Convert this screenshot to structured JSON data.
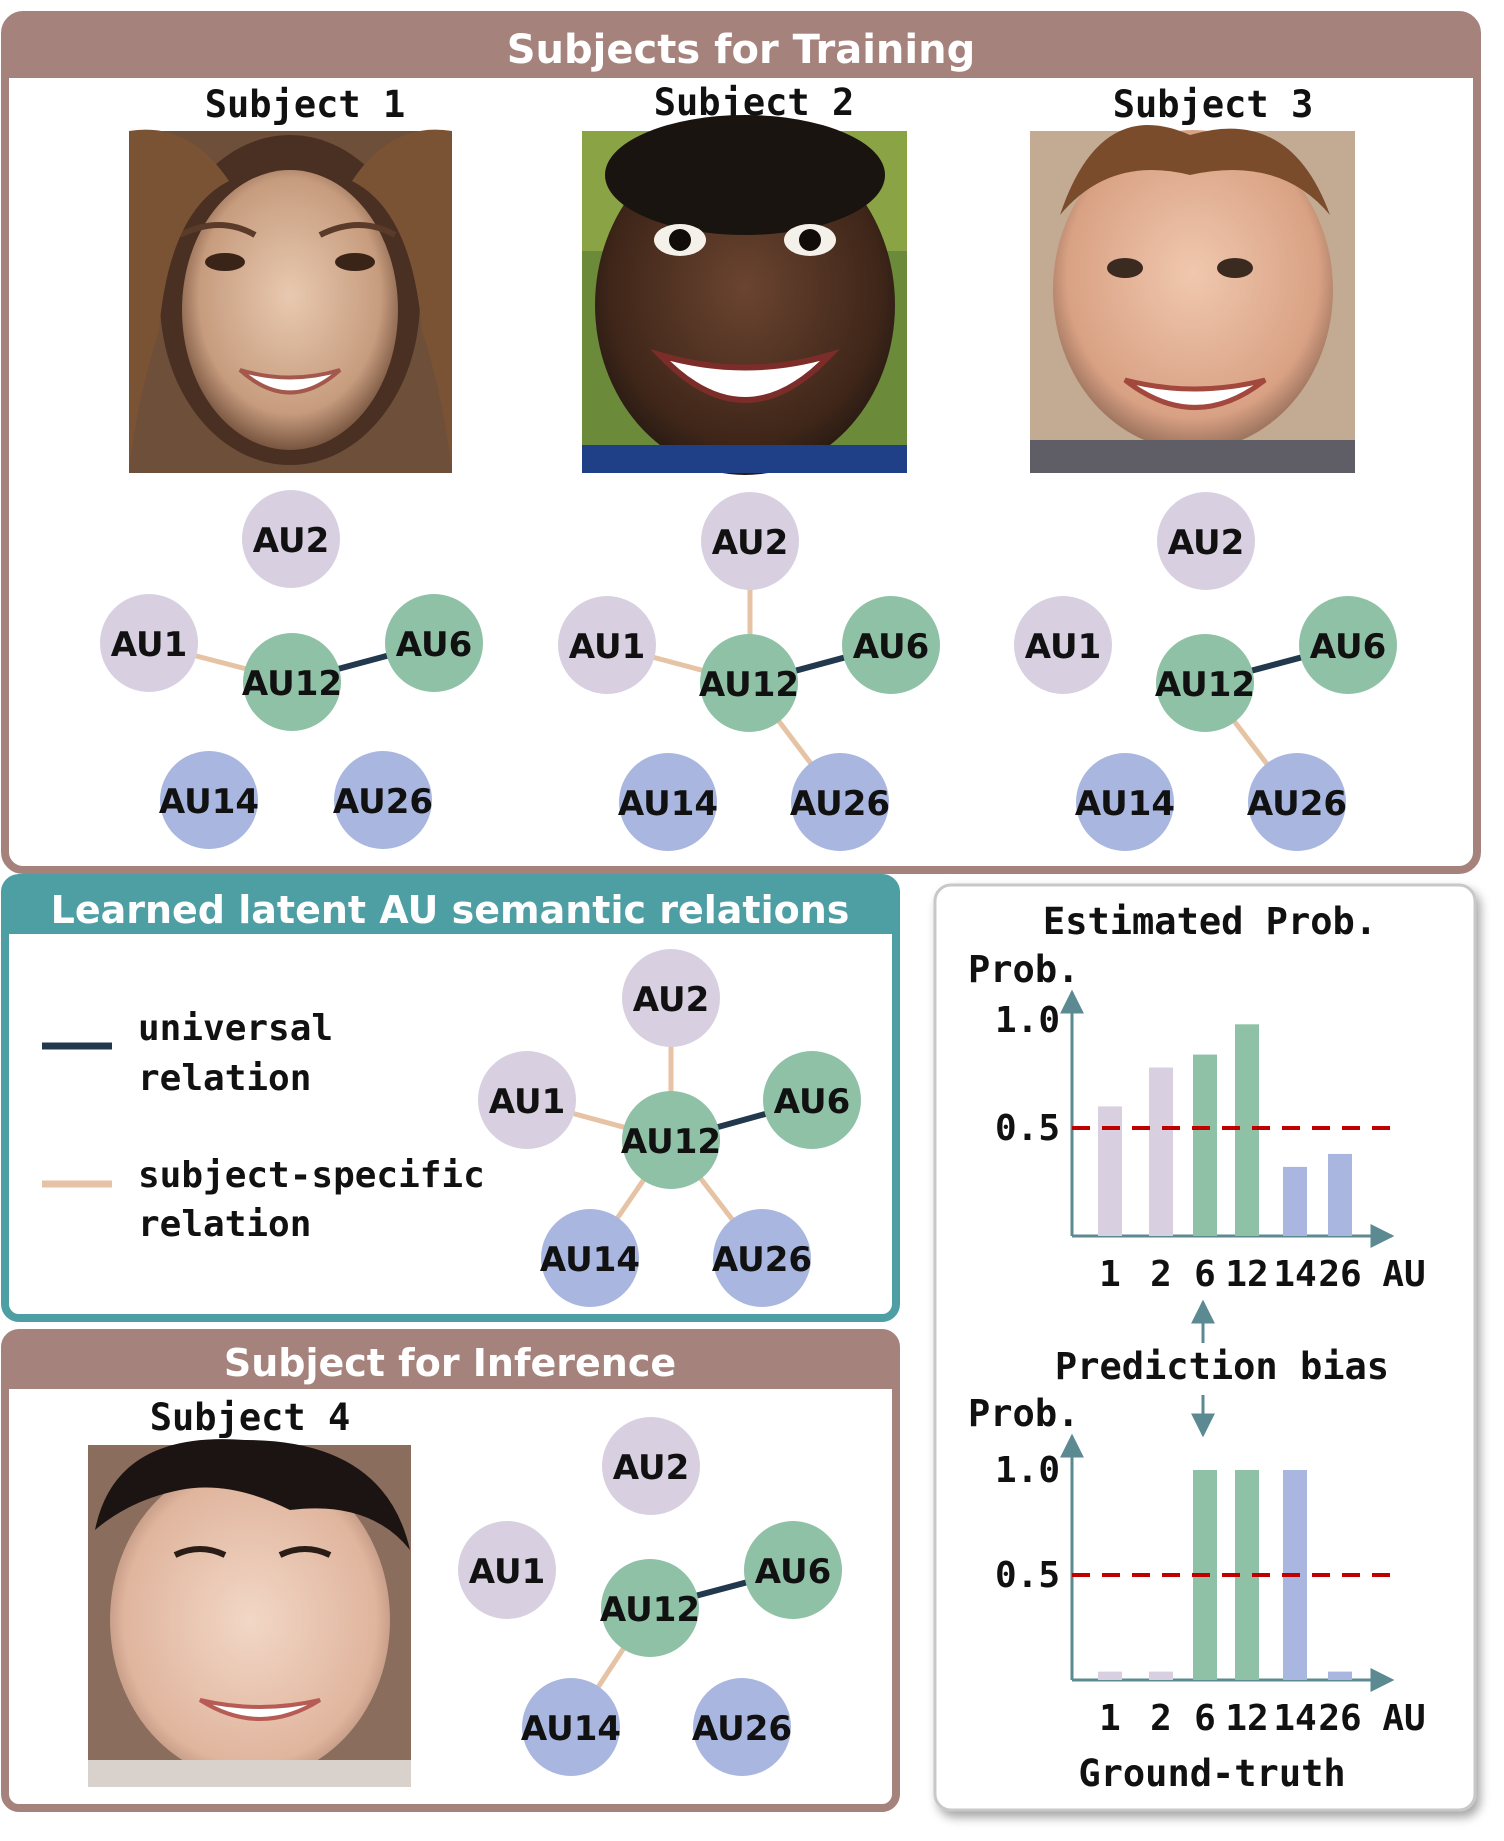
{
  "training": {
    "title": "Subjects for Training",
    "subjects": [
      {
        "label": "Subject 1",
        "photo": "face-photo"
      },
      {
        "label": "Subject 2",
        "photo": "face-photo"
      },
      {
        "label": "Subject 3",
        "photo": "face-photo"
      }
    ]
  },
  "latent": {
    "title": "Learned latent AU semantic relations",
    "legend": [
      {
        "line1": "universal",
        "line2": "relation",
        "color": "#21384d"
      },
      {
        "line1": "subject-specific",
        "line2": "relation",
        "color": "#e5c3a4"
      }
    ]
  },
  "inference": {
    "title": "Subject for Inference",
    "subject_label": "Subject 4"
  },
  "au_labels": {
    "au1": "AU1",
    "au2": "AU2",
    "au6": "AU6",
    "au12": "AU12",
    "au14": "AU14",
    "au26": "AU26"
  },
  "colors": {
    "upper_face": "#d8d0e0",
    "mid_face": "#8fc1a6",
    "lower_face": "#a9b7e0",
    "training_frame": "#a6827c",
    "latent_frame": "#4e9fa4",
    "threshold": "#c00000"
  },
  "chart_data": [
    {
      "type": "bar",
      "title": "Estimated Prob.",
      "ylabel": "Prob.",
      "xlabel": "AU",
      "categories": [
        "1",
        "2",
        "6",
        "12",
        "14",
        "26"
      ],
      "values": [
        0.6,
        0.78,
        0.84,
        0.98,
        0.32,
        0.38
      ],
      "yticks": [
        "0.5",
        "1.0"
      ],
      "ylim": [
        0,
        1.05
      ],
      "threshold": 0.5
    },
    {
      "type": "bar",
      "title": "Ground-truth",
      "ylabel": "Prob.",
      "xlabel": "AU",
      "categories": [
        "1",
        "2",
        "6",
        "12",
        "14",
        "26"
      ],
      "values": [
        0.04,
        0.04,
        1.0,
        1.0,
        1.0,
        0.04
      ],
      "yticks": [
        "0.5",
        "1.0"
      ],
      "ylim": [
        0,
        1.05
      ],
      "threshold": 0.5
    }
  ],
  "bias_label": "Prediction bias"
}
